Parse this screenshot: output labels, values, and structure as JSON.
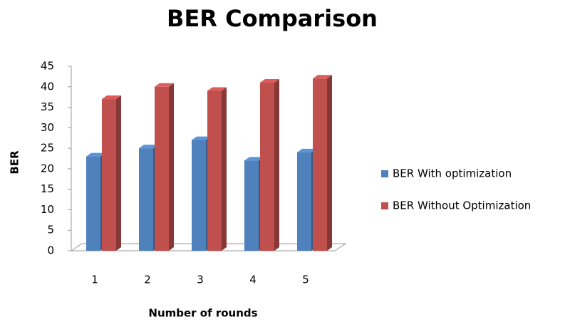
{
  "chart_data": {
    "type": "bar3d",
    "title": "BER Comparison",
    "x_label": "Number of rounds",
    "y_label": "BER",
    "categories": [
      "1",
      "2",
      "3",
      "4",
      "5"
    ],
    "series": [
      {
        "name": "BER With optimization",
        "color": "#4f81bd",
        "values": [
          23,
          25,
          27,
          22,
          24
        ]
      },
      {
        "name": "BER Without Optimization",
        "color": "#c0504d",
        "values": [
          37,
          40,
          39,
          41,
          42
        ]
      }
    ],
    "ylim": [
      0,
      45
    ],
    "yticks": [
      0,
      5,
      10,
      15,
      20,
      25,
      30,
      35,
      40,
      45
    ],
    "legend": "right"
  }
}
